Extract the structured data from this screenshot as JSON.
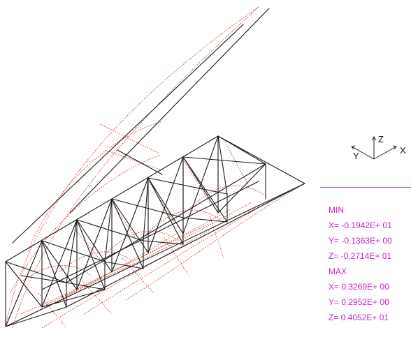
{
  "colors": {
    "mesh": "#1a1a1a",
    "deformed": "#d43a2a",
    "info_text": "#cc22cc"
  },
  "axes": {
    "z_label": "Z",
    "y_label": "Y",
    "x_label": "X"
  },
  "results": {
    "min_label": "MIN",
    "min_x": "X= -0.1942E+ 01",
    "min_y": "Y= -0.1363E+ 00",
    "min_z": "Z= -0.2714E+ 01",
    "max_label": "MAX",
    "max_x": "X= 0.3269E+ 00",
    "max_y": "Y= 0.2952E+ 00",
    "max_z": "Z= 0.4052E+ 01"
  }
}
